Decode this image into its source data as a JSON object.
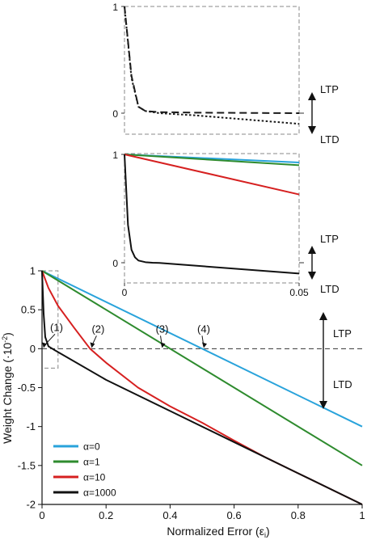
{
  "chart_data": [
    {
      "type": "line",
      "panel": "top-inset",
      "y_ticks": [
        "1",
        "0"
      ],
      "ylim": [
        -0.1,
        1
      ],
      "xlim": [
        0,
        0.05
      ],
      "series": [
        {
          "style": "dashed",
          "color": "#1a1a1a",
          "x": [
            0,
            0.002,
            0.004,
            0.006,
            0.01,
            0.02,
            0.05
          ],
          "y": [
            1,
            0.35,
            0.06,
            0.02,
            0.01,
            0.005,
            0.0
          ]
        },
        {
          "style": "dotted",
          "color": "#1a1a1a",
          "x": [
            0,
            0.002,
            0.004,
            0.006,
            0.01,
            0.02,
            0.05
          ],
          "y": [
            1,
            0.33,
            0.06,
            0.02,
            0.0,
            -0.02,
            -0.1
          ]
        }
      ],
      "annotations": {
        "ltp": "LTP",
        "ltd": "LTD"
      }
    },
    {
      "type": "line",
      "panel": "middle-inset",
      "x_ticks": [
        "0",
        "0.05"
      ],
      "y_ticks": [
        "1",
        "0"
      ],
      "xlim": [
        0,
        0.05
      ],
      "ylim": [
        -0.1,
        1
      ],
      "series": [
        {
          "name": "α=0",
          "color": "#29a3db",
          "x": [
            0,
            0.05
          ],
          "y": [
            1,
            0.925
          ]
        },
        {
          "name": "α=1",
          "color": "#2e8b2e",
          "x": [
            0,
            0.05
          ],
          "y": [
            1,
            0.9
          ]
        },
        {
          "name": "α=10",
          "color": "#d62020",
          "x": [
            0,
            0.05
          ],
          "y": [
            1,
            0.63
          ]
        },
        {
          "name": "α=1000",
          "color": "#111111",
          "x": [
            0,
            0.001,
            0.002,
            0.003,
            0.004,
            0.006,
            0.008,
            0.01,
            0.05
          ],
          "y": [
            1,
            0.35,
            0.12,
            0.05,
            0.02,
            0.005,
            0.0,
            -0.002,
            -0.1
          ]
        }
      ],
      "annotations": {
        "ltp": "LTP",
        "ltd": "LTD"
      }
    },
    {
      "type": "line",
      "panel": "main",
      "xlabel": "Normalized Error (ε",
      "xlabel_sub": "i",
      "xlabel_end": ")",
      "ylabel": "Weight Change (·10",
      "ylabel_sup": "-2",
      "ylabel_end": ")",
      "xlim": [
        0,
        1
      ],
      "ylim": [
        -2,
        1
      ],
      "x_ticks": [
        0,
        0.2,
        0.4,
        0.6,
        0.8,
        1
      ],
      "x_tick_labels": [
        "0",
        "0.2",
        "0.4",
        "0.6",
        "0.8",
        "1"
      ],
      "y_ticks": [
        1,
        0.5,
        0,
        -0.5,
        -1,
        -1.5,
        -2
      ],
      "y_tick_labels": [
        "1",
        "0.5",
        "0",
        "-0.5",
        "-1",
        "-1.5",
        "-2"
      ],
      "series": [
        {
          "name": "α=0",
          "color": "#29a3db",
          "x": [
            0,
            1
          ],
          "y": [
            1,
            -1
          ]
        },
        {
          "name": "α=1",
          "color": "#2e8b2e",
          "x": [
            0,
            1
          ],
          "y": [
            1,
            -1.5
          ]
        },
        {
          "name": "α=10",
          "color": "#d62020",
          "x": [
            0,
            0.02,
            0.05,
            0.1,
            0.15,
            0.2,
            0.3,
            0.4,
            0.5,
            0.6,
            0.7,
            0.8,
            0.9,
            1
          ],
          "y": [
            1,
            0.78,
            0.55,
            0.27,
            0.0,
            -0.18,
            -0.5,
            -0.74,
            -0.95,
            -1.18,
            -1.4,
            -1.6,
            -1.8,
            -2.0
          ]
        },
        {
          "name": "α=1000",
          "color": "#111111",
          "x": [
            0,
            0.005,
            0.01,
            0.02,
            0.04,
            0.2,
            0.4,
            0.6,
            0.8,
            1
          ],
          "y": [
            1,
            0.45,
            0.15,
            0.03,
            -0.02,
            -0.4,
            -0.8,
            -1.2,
            -1.6,
            -2.0
          ]
        }
      ],
      "zero_line": true,
      "inset_box": {
        "x": [
          0,
          0.05
        ],
        "y": [
          -0.25,
          1
        ]
      },
      "callouts": [
        {
          "label": "(1)",
          "x": 0.0,
          "y": 0.0
        },
        {
          "label": "(2)",
          "x": 0.15,
          "y": 0.0
        },
        {
          "label": "(3)",
          "x": 0.37,
          "y": 0.0
        },
        {
          "label": "(4)",
          "x": 0.5,
          "y": 0.0
        }
      ],
      "annotations": {
        "ltp": "LTP",
        "ltd": "LTD"
      },
      "legend_position": "bottom-left"
    }
  ]
}
